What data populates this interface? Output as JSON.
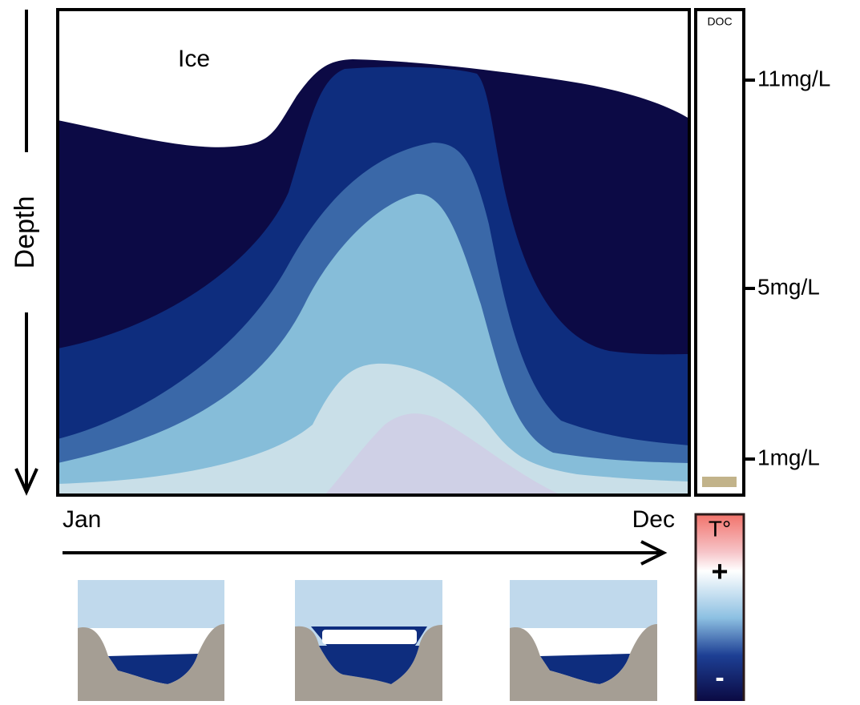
{
  "labels": {
    "ice": "Ice",
    "depth": "Depth",
    "jan": "Jan",
    "dec": "Dec",
    "doc": "DOC",
    "doc_ticks": [
      "11mg/L",
      "5mg/L",
      "1mg/L"
    ],
    "temperature": {
      "title": "T°",
      "plus": "+",
      "minus": "-"
    }
  }
}
